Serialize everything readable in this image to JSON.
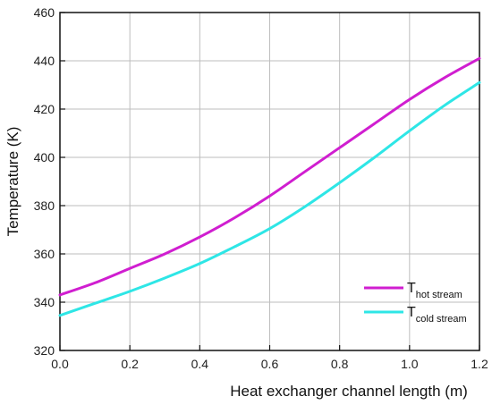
{
  "chart_data": {
    "type": "line",
    "xlabel": "Heat exchanger channel length (m)",
    "ylabel": "Temperature (K)",
    "xlim": [
      0.0,
      1.2
    ],
    "ylim": [
      320,
      460
    ],
    "xticks": [
      "0.0",
      "0.2",
      "0.4",
      "0.6",
      "0.8",
      "1.0",
      "1.2"
    ],
    "yticks": [
      "320",
      "340",
      "360",
      "380",
      "400",
      "420",
      "440",
      "460"
    ],
    "grid": true,
    "legend_position": "bottom-right",
    "series": [
      {
        "name": "T",
        "subscript": "hot stream",
        "color": "#d01ed0",
        "x": [
          0.0,
          0.1,
          0.2,
          0.3,
          0.4,
          0.5,
          0.6,
          0.7,
          0.8,
          0.9,
          1.0,
          1.1,
          1.2
        ],
        "y": [
          343,
          348,
          354,
          360,
          367,
          375,
          384,
          394,
          404,
          414,
          424,
          433,
          441
        ]
      },
      {
        "name": "T",
        "subscript": "cold stream",
        "color": "#2ee6e6",
        "x": [
          0.0,
          0.1,
          0.2,
          0.3,
          0.4,
          0.5,
          0.6,
          0.7,
          0.8,
          0.9,
          1.0,
          1.1,
          1.2
        ],
        "y": [
          334.5,
          339.5,
          344.5,
          350,
          356,
          363,
          370.5,
          379.5,
          389.5,
          400,
          411,
          421.5,
          431
        ]
      }
    ]
  }
}
